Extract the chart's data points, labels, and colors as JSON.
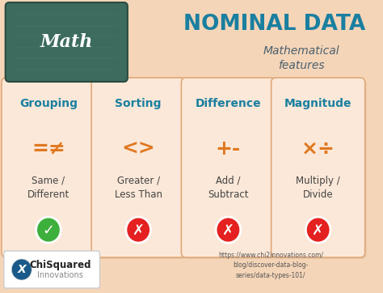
{
  "title": "NOMINAL DATA",
  "subtitle": "Mathematical\nfeatures",
  "title_color": "#1a7fa0",
  "subtitle_color": "#4a6070",
  "bg_color": "#f5d5b8",
  "cards": [
    {
      "title": "Grouping",
      "symbol": "=≠",
      "description": "Same /\nDifferent",
      "check_color": "#3daf3d",
      "check_mark": "✓"
    },
    {
      "title": "Sorting",
      "symbol": "<>",
      "description": "Greater /\nLess Than",
      "check_color": "#e52020",
      "check_mark": "✗"
    },
    {
      "title": "Difference",
      "symbol": "+-",
      "description": "Add /\nSubtract",
      "check_color": "#e52020",
      "check_mark": "✗"
    },
    {
      "title": "Magnitude",
      "symbol": "×÷",
      "description": "Multiply /\nDivide",
      "check_color": "#e52020",
      "check_mark": "✗"
    }
  ],
  "card_title_color": "#1a7fa0",
  "card_face_color": "#fce8d8",
  "card_edge_color": "#e0a878",
  "symbol_color": "#e07820",
  "desc_color": "#444444",
  "url_text": "https://www.chi2innovations.com/\nblog/discover-data-blog-\nseries/data-types-101/",
  "math_bg": "#3d6b5e",
  "math_bg2": "#4a7a6e"
}
